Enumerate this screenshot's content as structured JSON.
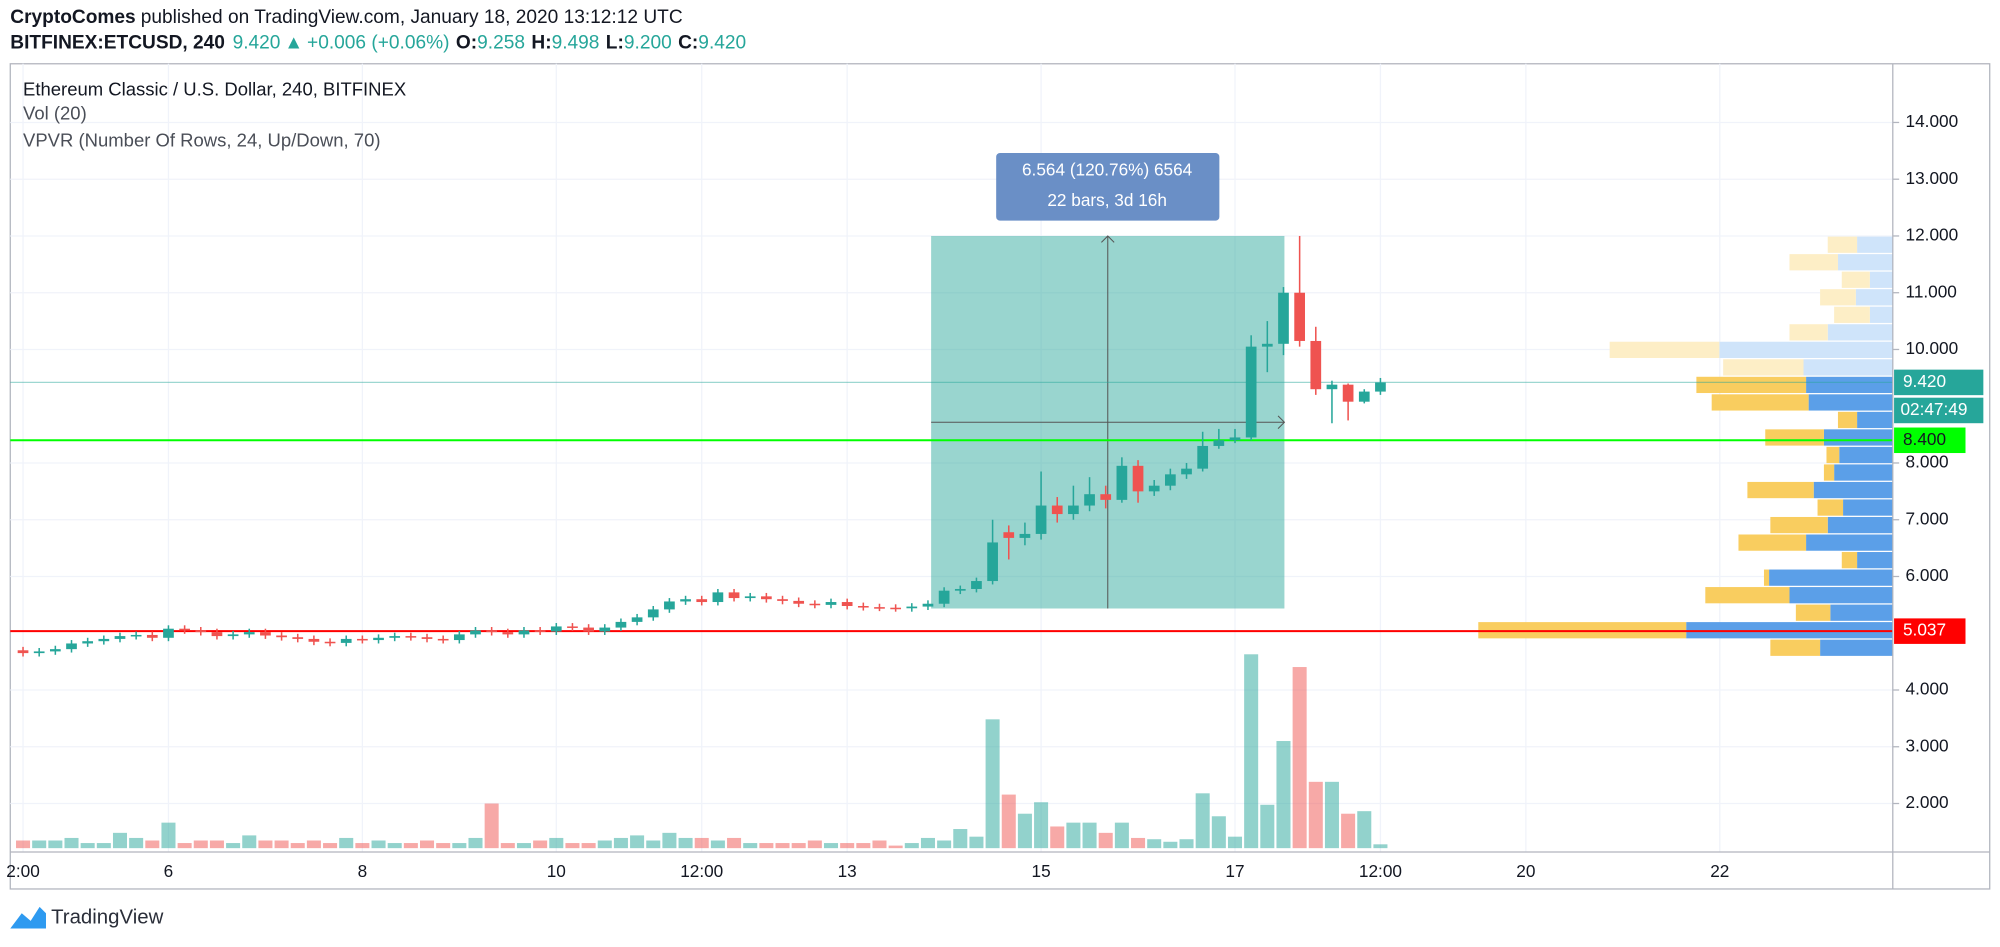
{
  "header": {
    "author": "CryptoComes",
    "published": "published on TradingView.com, January 18, 2020 13:12:12 UTC",
    "symbol": "BITFINEX:ETCUSD, 240",
    "last": "9.420",
    "arrow": "▲",
    "change": "+0.006 (+0.06%)",
    "ohlc": [
      {
        "label": "O:",
        "value": "9.258"
      },
      {
        "label": "H:",
        "value": "9.498"
      },
      {
        "label": "L:",
        "value": "9.200"
      },
      {
        "label": "C:",
        "value": "9.420"
      }
    ]
  },
  "chart_data": {
    "type": "candlestick",
    "title": "Ethereum Classic / U.S. Dollar, 240, BITFINEX",
    "indicators": [
      "Vol (20)",
      "VPVR (Number Of Rows, 24, Up/Down, 70)"
    ],
    "up_color": "#26a69a",
    "down_color": "#ef5350",
    "grid": true,
    "ylim": [
      1.146,
      15.034
    ],
    "yticks": [
      {
        "value": 14,
        "label": "14.000"
      },
      {
        "value": 13,
        "label": "13.000"
      },
      {
        "value": 12,
        "label": "12.000"
      },
      {
        "value": 11,
        "label": "11.000"
      },
      {
        "value": 10,
        "label": "10.000"
      },
      {
        "value": 8,
        "label": "8.000"
      },
      {
        "value": 7,
        "label": "7.000"
      },
      {
        "value": 6,
        "label": "6.000"
      },
      {
        "value": 4,
        "label": "4.000"
      },
      {
        "value": 3,
        "label": "3.000"
      },
      {
        "value": 2,
        "label": "2.000"
      }
    ],
    "categories": [
      "2:00",
      null,
      null,
      null,
      null,
      null,
      null,
      null,
      null,
      "6",
      null,
      null,
      null,
      null,
      null,
      null,
      null,
      null,
      null,
      null,
      null,
      "8",
      null,
      null,
      null,
      null,
      null,
      null,
      null,
      null,
      null,
      null,
      null,
      "10",
      null,
      null,
      null,
      null,
      null,
      null,
      null,
      null,
      "12:00",
      null,
      null,
      null,
      null,
      null,
      null,
      null,
      null,
      "13",
      null,
      null,
      null,
      null,
      null,
      null,
      null,
      null,
      null,
      null,
      null,
      "15",
      null,
      null,
      null,
      null,
      null,
      null,
      null,
      null,
      null,
      null,
      null,
      "17",
      null,
      null,
      null,
      null,
      null,
      null,
      null,
      null,
      "12:00",
      null,
      null,
      null,
      null,
      null,
      null,
      null,
      null,
      "20",
      null,
      null,
      null,
      null,
      null,
      null,
      null,
      null,
      null,
      null,
      null,
      "22",
      null,
      null,
      null,
      null,
      null,
      null,
      null,
      null,
      null,
      null
    ],
    "open": [
      4.7,
      4.65,
      4.68,
      4.72,
      4.82,
      4.86,
      4.9,
      4.95,
      4.97,
      4.92,
      5.08,
      5.05,
      5.02,
      4.95,
      4.98,
      5.02,
      4.96,
      4.93,
      4.9,
      4.85,
      4.83,
      4.9,
      4.88,
      4.92,
      4.95,
      4.93,
      4.9,
      4.88,
      4.98,
      5.05,
      5.02,
      4.98,
      5.05,
      5.03,
      5.12,
      5.1,
      5.03,
      5.1,
      5.2,
      5.28,
      5.42,
      5.56,
      5.6,
      5.55,
      5.72,
      5.62,
      5.65,
      5.6,
      5.57,
      5.52,
      5.5,
      5.55,
      5.48,
      5.46,
      5.45,
      5.44,
      5.47,
      5.52,
      5.75,
      5.78,
      5.92,
      6.78,
      6.68,
      6.75,
      7.25,
      7.1,
      7.25,
      7.45,
      7.35,
      7.95,
      7.5,
      7.6,
      7.8,
      7.9,
      8.3,
      8.4,
      8.45,
      10.05,
      10.1,
      11.0,
      10.15,
      9.3,
      9.38,
      9.08,
      9.258,
      null,
      null,
      null,
      null,
      null,
      null,
      null,
      null,
      null,
      null,
      null,
      null,
      null,
      null,
      null,
      null,
      null,
      null,
      null,
      null,
      null,
      null,
      null,
      null,
      null,
      null,
      null,
      null,
      null,
      null,
      null
    ],
    "high": [
      4.76,
      4.74,
      4.78,
      4.88,
      4.92,
      4.96,
      5.01,
      5.03,
      5.03,
      5.14,
      5.14,
      5.11,
      5.08,
      5.04,
      5.08,
      5.08,
      5.02,
      4.99,
      4.96,
      4.91,
      4.96,
      4.96,
      4.98,
      5.01,
      5.01,
      4.99,
      4.96,
      5.04,
      5.11,
      5.11,
      5.08,
      5.11,
      5.11,
      5.18,
      5.18,
      5.16,
      5.16,
      5.26,
      5.34,
      5.48,
      5.62,
      5.66,
      5.66,
      5.78,
      5.78,
      5.71,
      5.71,
      5.66,
      5.63,
      5.58,
      5.61,
      5.61,
      5.54,
      5.52,
      5.51,
      5.53,
      5.58,
      5.81,
      5.84,
      5.98,
      7.0,
      6.9,
      6.95,
      7.85,
      7.4,
      7.6,
      7.75,
      7.6,
      8.1,
      8.05,
      7.7,
      7.9,
      8.0,
      8.55,
      8.6,
      8.6,
      10.25,
      10.5,
      11.1,
      12.0,
      10.4,
      9.45,
      9.4,
      9.3,
      9.498,
      null,
      null,
      null,
      null,
      null,
      null,
      null,
      null,
      null,
      null,
      null,
      null,
      null,
      null,
      null,
      null,
      null,
      null,
      null,
      null,
      null,
      null,
      null,
      null,
      null,
      null,
      null,
      null,
      null,
      null,
      null
    ],
    "low": [
      4.59,
      4.59,
      4.62,
      4.66,
      4.76,
      4.8,
      4.84,
      4.89,
      4.86,
      4.86,
      4.99,
      4.96,
      4.89,
      4.89,
      4.92,
      4.9,
      4.87,
      4.84,
      4.79,
      4.77,
      4.77,
      4.82,
      4.82,
      4.86,
      4.87,
      4.84,
      4.82,
      4.82,
      4.92,
      4.96,
      4.92,
      4.92,
      4.97,
      4.97,
      5.04,
      4.97,
      4.97,
      5.04,
      5.14,
      5.22,
      5.36,
      5.5,
      5.49,
      5.49,
      5.56,
      5.56,
      5.54,
      5.51,
      5.46,
      5.44,
      5.44,
      5.42,
      5.4,
      5.39,
      5.38,
      5.38,
      5.41,
      5.46,
      5.69,
      5.72,
      5.86,
      6.3,
      6.55,
      6.65,
      6.95,
      7.0,
      7.15,
      7.2,
      7.3,
      7.3,
      7.42,
      7.52,
      7.72,
      7.85,
      8.25,
      8.35,
      8.4,
      9.6,
      9.9,
      10.05,
      9.2,
      8.7,
      8.75,
      9.05,
      9.2,
      null,
      null,
      null,
      null,
      null,
      null,
      null,
      null,
      null,
      null,
      null,
      null,
      null,
      null,
      null,
      null,
      null,
      null,
      null,
      null,
      null,
      null,
      null,
      null,
      null,
      null,
      null,
      null,
      null,
      null,
      null
    ],
    "close": [
      4.65,
      4.68,
      4.72,
      4.82,
      4.86,
      4.9,
      4.95,
      4.97,
      4.92,
      5.08,
      5.05,
      5.02,
      4.95,
      4.98,
      5.02,
      4.96,
      4.93,
      4.9,
      4.85,
      4.83,
      4.9,
      4.88,
      4.92,
      4.95,
      4.93,
      4.9,
      4.88,
      4.98,
      5.05,
      5.02,
      4.98,
      5.05,
      5.03,
      5.12,
      5.1,
      5.03,
      5.1,
      5.2,
      5.28,
      5.42,
      5.56,
      5.6,
      5.55,
      5.72,
      5.62,
      5.65,
      5.6,
      5.57,
      5.52,
      5.5,
      5.55,
      5.48,
      5.46,
      5.45,
      5.44,
      5.47,
      5.52,
      5.75,
      5.78,
      5.92,
      6.6,
      6.68,
      6.75,
      7.25,
      7.1,
      7.25,
      7.45,
      7.35,
      7.95,
      7.5,
      7.6,
      7.8,
      7.9,
      8.3,
      8.4,
      8.45,
      10.05,
      10.1,
      11.0,
      10.15,
      9.3,
      9.38,
      9.08,
      9.258,
      9.42,
      null,
      null,
      null,
      null,
      null,
      null,
      null,
      null,
      null,
      null,
      null,
      null,
      null,
      null,
      null,
      null,
      null,
      null,
      null,
      null,
      null,
      null,
      null,
      null,
      null,
      null,
      null,
      null,
      null,
      null,
      null
    ],
    "volume": [
      6,
      6,
      6,
      8,
      4,
      4,
      12,
      8,
      6,
      20,
      4,
      6,
      6,
      4,
      10,
      6,
      6,
      4,
      6,
      4,
      8,
      4,
      6,
      4,
      4,
      6,
      4,
      4,
      8,
      35,
      4,
      4,
      6,
      8,
      4,
      4,
      6,
      8,
      10,
      6,
      12,
      8,
      8,
      6,
      8,
      4,
      4,
      4,
      4,
      6,
      4,
      4,
      4,
      6,
      2,
      4,
      8,
      6,
      15,
      9,
      101,
      42,
      27,
      36,
      17,
      20,
      20,
      12,
      20,
      8,
      7,
      5,
      7,
      43,
      25,
      9,
      152,
      34,
      84,
      142,
      52,
      52,
      27,
      29,
      3,
      null,
      null,
      null,
      null,
      null,
      null,
      null,
      null,
      null,
      null,
      null,
      null,
      null,
      null,
      null,
      null,
      null,
      null,
      null,
      null,
      null,
      null,
      null,
      null,
      null,
      null,
      null,
      null,
      null,
      null,
      null
    ],
    "vpvr": {
      "rows": 24,
      "value_area": 70,
      "up_color": "#5b9fe8",
      "down_color": "#f9cd5f",
      "up_pale": "#cfe4fa",
      "down_pale": "#fdeec6",
      "up": [
        57,
        162,
        49,
        81,
        97,
        28,
        68,
        51,
        39,
        62,
        46,
        42,
        54,
        28,
        66,
        68,
        70,
        136,
        51,
        18,
        29,
        18,
        43,
        28
      ],
      "down": [
        39,
        163,
        27,
        66,
        4,
        12,
        53,
        45,
        20,
        52,
        8,
        10,
        46,
        15,
        76,
        86,
        63,
        86,
        30,
        28,
        28,
        22,
        38,
        23
      ]
    },
    "price_lines": [
      {
        "value": 9.42,
        "label": "9.420",
        "color": "#26a69a",
        "text_color": "#ffffff",
        "countdown": "02:47:49",
        "line_opacity": 0.45
      },
      {
        "value": 8.4,
        "label": "8.400",
        "color": "#00ff00",
        "text_color": "#131722",
        "line_opacity": 1
      },
      {
        "value": 5.037,
        "label": "5.037",
        "color": "#ff0000",
        "text_color": "#ffffff",
        "line_opacity": 1
      }
    ],
    "measure": {
      "low": 5.436,
      "high": 12.0,
      "label": "6.564 (120.76%) 6564",
      "sublabel": "22 bars, 3d 16h",
      "color": "#26a69a",
      "box_color": "#6a8fc6"
    }
  },
  "footer": {
    "brand": "TradingView"
  }
}
